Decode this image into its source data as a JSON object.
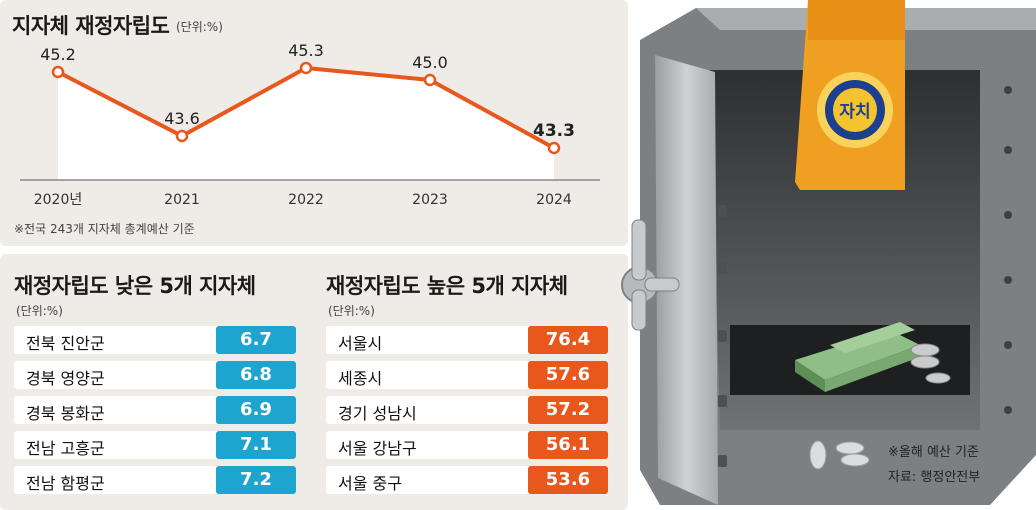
{
  "chart_title": "지자체 재정자립도",
  "chart_unit": "(단위:%)",
  "chart_note": "※전국 243개 지자체 총계예산 기준",
  "chart_data": [
    {
      "type": "line",
      "title": "지자체 재정자립도",
      "categories": [
        "2020년",
        "2021",
        "2022",
        "2023",
        "2024"
      ],
      "series": [
        {
          "values": [
            45.2,
            43.6,
            45.3,
            45.0,
            43.3
          ]
        }
      ],
      "data_labels": [
        "45.2",
        "43.6",
        "45.3",
        "45.0",
        "43.3"
      ],
      "ylim": [
        42.5,
        46
      ],
      "color": "#e8571c",
      "grid": false
    },
    {
      "type": "table",
      "title": "재정자립도 낮은 5개 지자체",
      "unit": "(단위:%)",
      "rows": [
        {
          "name": "전북 진안군",
          "value": "6.7"
        },
        {
          "name": "경북 영양군",
          "value": "6.8"
        },
        {
          "name": "경북 봉화군",
          "value": "6.9"
        },
        {
          "name": "전남 고흥군",
          "value": "7.1"
        },
        {
          "name": "전남 함평군",
          "value": "7.2"
        }
      ],
      "color": "#1ea5cf"
    },
    {
      "type": "table",
      "title": "재정자립도 높은 5개 지자체",
      "unit": "(단위:%)",
      "rows": [
        {
          "name": "서울시",
          "value": "76.4"
        },
        {
          "name": "세종시",
          "value": "57.6"
        },
        {
          "name": "경기 성남시",
          "value": "57.2"
        },
        {
          "name": "서울 강남구",
          "value": "56.1"
        },
        {
          "name": "서울 중구",
          "value": "53.6"
        }
      ],
      "color": "#e8571c"
    }
  ],
  "low_title": "재정자립도 낮은 5개 지자체",
  "low_unit": "(단위:%)",
  "high_title": "재정자립도 높은 5개 지자체",
  "high_unit": "(단위:%)",
  "emblem_text": "자치",
  "caption_note": "※올해 예산 기준",
  "caption_source": "자료: 행정안전부"
}
